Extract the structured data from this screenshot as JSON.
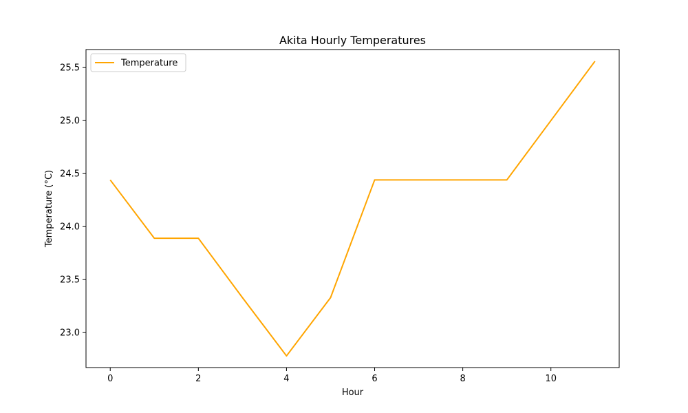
{
  "chart_data": {
    "type": "line",
    "title": "Akita Hourly Temperatures",
    "xlabel": "Hour",
    "ylabel": "Temperature (°C)",
    "x": [
      0,
      1,
      2,
      3,
      4,
      5,
      6,
      7,
      8,
      9,
      10,
      11
    ],
    "series": [
      {
        "name": "Temperature",
        "color": "#ffa500",
        "values": [
          24.44,
          23.89,
          23.89,
          23.33,
          22.78,
          23.33,
          24.44,
          24.44,
          24.44,
          24.44,
          25.0,
          25.56
        ]
      }
    ],
    "xlim": [
      -0.55,
      11.55
    ],
    "ylim": [
      22.67,
      25.67
    ],
    "xticks": [
      0,
      2,
      4,
      6,
      8,
      10
    ],
    "xtick_labels": [
      "0",
      "2",
      "4",
      "6",
      "8",
      "10"
    ],
    "yticks": [
      23.0,
      23.5,
      24.0,
      24.5,
      25.0,
      25.5
    ],
    "ytick_labels": [
      "23.0",
      "23.5",
      "24.0",
      "24.5",
      "25.0",
      "25.5"
    ],
    "grid": false,
    "legend_position": "upper left"
  }
}
